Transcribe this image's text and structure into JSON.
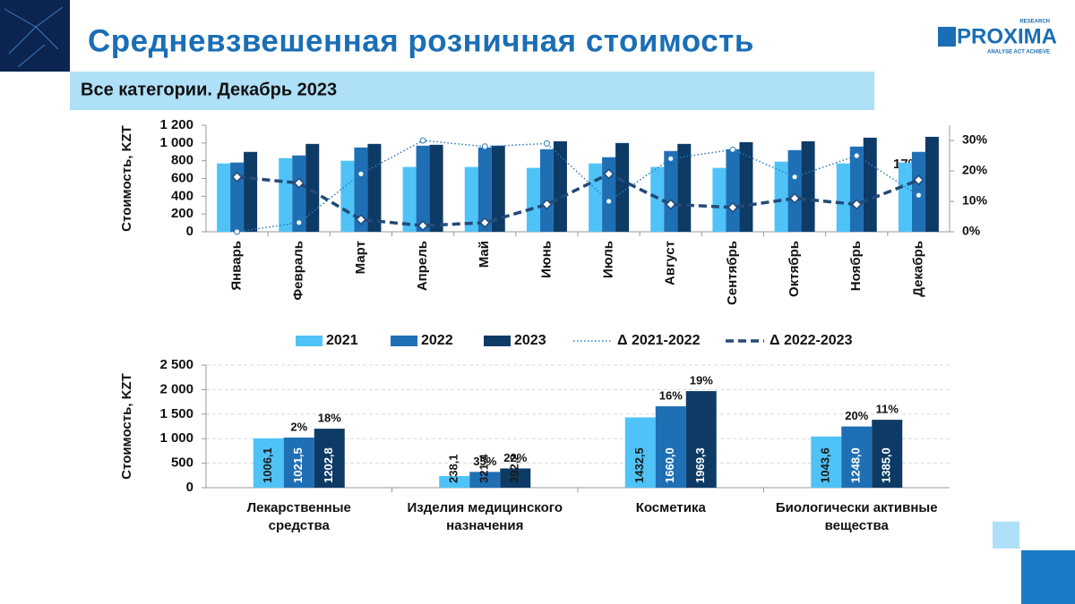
{
  "header": {
    "title": "Средневзвешенная розничная стоимость",
    "subtitle": "Все категории. Декабрь 2023",
    "logo": "PROXIMA",
    "logo_top": "RESEARCH",
    "logo_tagline": "ANALYSE  ACT  ACHIEVE"
  },
  "chart_data": [
    {
      "type": "bar",
      "y_label": "Стоимость, KZT",
      "categories": [
        "Январь",
        "Февраль",
        "Март",
        "Апрель",
        "Май",
        "Июнь",
        "Июль",
        "Август",
        "Сентябрь",
        "Октябрь",
        "Ноябрь",
        "Декабрь"
      ],
      "series": [
        {
          "name": "2021",
          "color": "#4fc3f7",
          "values": [
            770,
            830,
            800,
            730,
            730,
            720,
            770,
            730,
            720,
            790,
            770,
            780
          ]
        },
        {
          "name": "2022",
          "color": "#1f6fb5",
          "values": [
            780,
            860,
            950,
            970,
            950,
            930,
            840,
            910,
            930,
            920,
            960,
            900
          ]
        },
        {
          "name": "2023",
          "color": "#0d3b66",
          "values": [
            900,
            990,
            990,
            980,
            970,
            1020,
            1000,
            990,
            1010,
            1020,
            1060,
            1070
          ]
        },
        {
          "name": "Δ 2021-2022",
          "color": "#2a7bbf",
          "axis": "y2",
          "style": "dotted",
          "marker": "circle",
          "values": [
            0,
            3,
            19,
            30,
            28,
            29,
            10,
            24,
            27,
            18,
            25,
            12
          ]
        },
        {
          "name": "Δ 2022-2023",
          "color": "#234a78",
          "axis": "y2",
          "style": "dashed",
          "marker": "diamond",
          "values": [
            18,
            16,
            4,
            2,
            3,
            9,
            19,
            9,
            8,
            11,
            9,
            17
          ]
        }
      ],
      "ylim": [
        0,
        1200
      ],
      "yticks": [
        0,
        200,
        400,
        600,
        800,
        {
          "value": 1000,
          "label": "1 000"
        },
        {
          "value": 1200,
          "label": "1 200"
        }
      ],
      "y2lim": [
        0,
        35
      ],
      "y2ticks": [
        {
          "value": 0,
          "label": "0%"
        },
        {
          "value": 10,
          "label": "10%"
        },
        {
          "value": 20,
          "label": "20%"
        },
        {
          "value": 30,
          "label": "30%"
        }
      ],
      "annotation": "17%",
      "grid": false,
      "legend": "bottom"
    },
    {
      "type": "bar",
      "y_label": "Стоимость, KZT",
      "categories": [
        [
          "Лекарственные",
          "средства"
        ],
        [
          "Изделия медицинского",
          "назначения"
        ],
        [
          "Косметика"
        ],
        [
          "Биологически активные",
          "вещества"
        ]
      ],
      "series": [
        {
          "color": "#4fc3f7",
          "values": [
            1006.1,
            238.1,
            1432.5,
            1043.6
          ],
          "value_labels": [
            "1006,1",
            "238,1",
            "1432,5",
            "1043,6"
          ]
        },
        {
          "color": "#1f6fb5",
          "values": [
            1021.5,
            321.4,
            1660.0,
            1248.0
          ],
          "value_labels": [
            "1021,5",
            "321,4",
            "1660,0",
            "1248,0"
          ],
          "growth_labels": [
            "2%",
            "35%",
            "16%",
            "20%"
          ]
        },
        {
          "color": "#0d3b66",
          "values": [
            1202.8,
            392.2,
            1969.3,
            1385.0
          ],
          "value_labels": [
            "1202,8",
            "392,2",
            "1969,3",
            "1385,0"
          ],
          "growth_labels": [
            "18%",
            "22%",
            "19%",
            "11%"
          ]
        }
      ],
      "ylim": [
        0,
        2500
      ],
      "yticks": [
        0,
        500,
        {
          "value": 1000,
          "label": "1 000"
        },
        {
          "value": 1500,
          "label": "1 500"
        },
        {
          "value": 2000,
          "label": "2 000"
        },
        {
          "value": 2500,
          "label": "2 500"
        }
      ],
      "grid": true
    }
  ]
}
